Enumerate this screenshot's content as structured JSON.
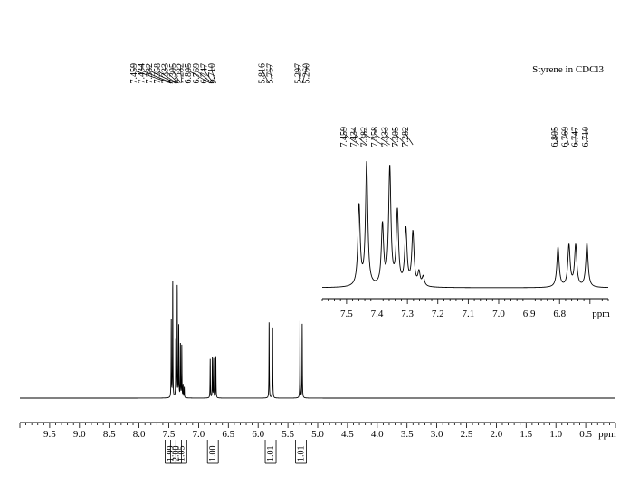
{
  "chart_data": {
    "type": "line",
    "title": "Styrene in CDCl3",
    "main": {
      "xlim": [
        10.0,
        0.0
      ],
      "axis_unit": "ppm",
      "ticks": [
        "9.5",
        "9.0",
        "8.5",
        "8.0",
        "7.5",
        "7.0",
        "6.5",
        "6.0",
        "5.5",
        "5.0",
        "4.5",
        "4.0",
        "3.5",
        "3.0",
        "2.5",
        "2.0",
        "1.5",
        "1.0",
        "0.5"
      ],
      "peaks": [
        {
          "ppm": 7.459,
          "height": 0.6
        },
        {
          "ppm": 7.434,
          "height": 0.92
        },
        {
          "ppm": 7.382,
          "height": 0.45
        },
        {
          "ppm": 7.358,
          "height": 0.88
        },
        {
          "ppm": 7.333,
          "height": 0.55
        },
        {
          "ppm": 7.305,
          "height": 0.42
        },
        {
          "ppm": 7.282,
          "height": 0.4
        },
        {
          "ppm": 7.26,
          "height": 0.1
        },
        {
          "ppm": 7.24,
          "height": 0.08
        },
        {
          "ppm": 6.805,
          "height": 0.3
        },
        {
          "ppm": 6.769,
          "height": 0.31
        },
        {
          "ppm": 6.747,
          "height": 0.31
        },
        {
          "ppm": 6.71,
          "height": 0.33
        },
        {
          "ppm": 5.816,
          "height": 0.6
        },
        {
          "ppm": 5.757,
          "height": 0.56
        },
        {
          "ppm": 5.297,
          "height": 0.61
        },
        {
          "ppm": 5.26,
          "height": 0.57
        }
      ],
      "peak_labels": [
        {
          "group": "aromatic",
          "labels": [
            "7.459",
            "7.434",
            "7.382",
            "7.358",
            "7.333",
            "7.305",
            "7.282",
            "6.805",
            "6.769",
            "6.747",
            "6.710"
          ]
        },
        {
          "group": "vinyl-trans",
          "labels": [
            "5.816",
            "5.757"
          ]
        },
        {
          "group": "vinyl-cis",
          "labels": [
            "5.297",
            "5.260"
          ]
        }
      ],
      "integrals": [
        {
          "ppm": 7.47,
          "label": "1.99"
        },
        {
          "ppm": 7.38,
          "label": "2.00"
        },
        {
          "ppm": 7.29,
          "label": "1.05"
        },
        {
          "ppm": 6.76,
          "label": "1.00"
        },
        {
          "ppm": 5.79,
          "label": "1.01"
        },
        {
          "ppm": 5.28,
          "label": "1.01"
        }
      ]
    },
    "inset": {
      "xlim": [
        7.58,
        6.64
      ],
      "axis_unit": "ppm",
      "ticks": [
        "7.5",
        "7.4",
        "7.3",
        "7.2",
        "7.1",
        "7.0",
        "6.9",
        "6.8"
      ],
      "peaks": [
        {
          "ppm": 7.459,
          "height": 0.6
        },
        {
          "ppm": 7.434,
          "height": 0.92
        },
        {
          "ppm": 7.382,
          "height": 0.45
        },
        {
          "ppm": 7.358,
          "height": 0.88
        },
        {
          "ppm": 7.333,
          "height": 0.55
        },
        {
          "ppm": 7.305,
          "height": 0.42
        },
        {
          "ppm": 7.282,
          "height": 0.4
        },
        {
          "ppm": 7.262,
          "height": 0.1
        },
        {
          "ppm": 7.248,
          "height": 0.07
        },
        {
          "ppm": 6.805,
          "height": 0.3
        },
        {
          "ppm": 6.769,
          "height": 0.31
        },
        {
          "ppm": 6.747,
          "height": 0.31
        },
        {
          "ppm": 6.71,
          "height": 0.33
        }
      ],
      "peak_labels": [
        {
          "group": "aromatic",
          "labels": [
            "7.459",
            "7.434",
            "7.382",
            "7.358",
            "7.333",
            "7.305",
            "7.282"
          ]
        },
        {
          "group": "vinyl",
          "labels": [
            "6.805",
            "6.769",
            "6.747",
            "6.710"
          ]
        }
      ]
    }
  }
}
